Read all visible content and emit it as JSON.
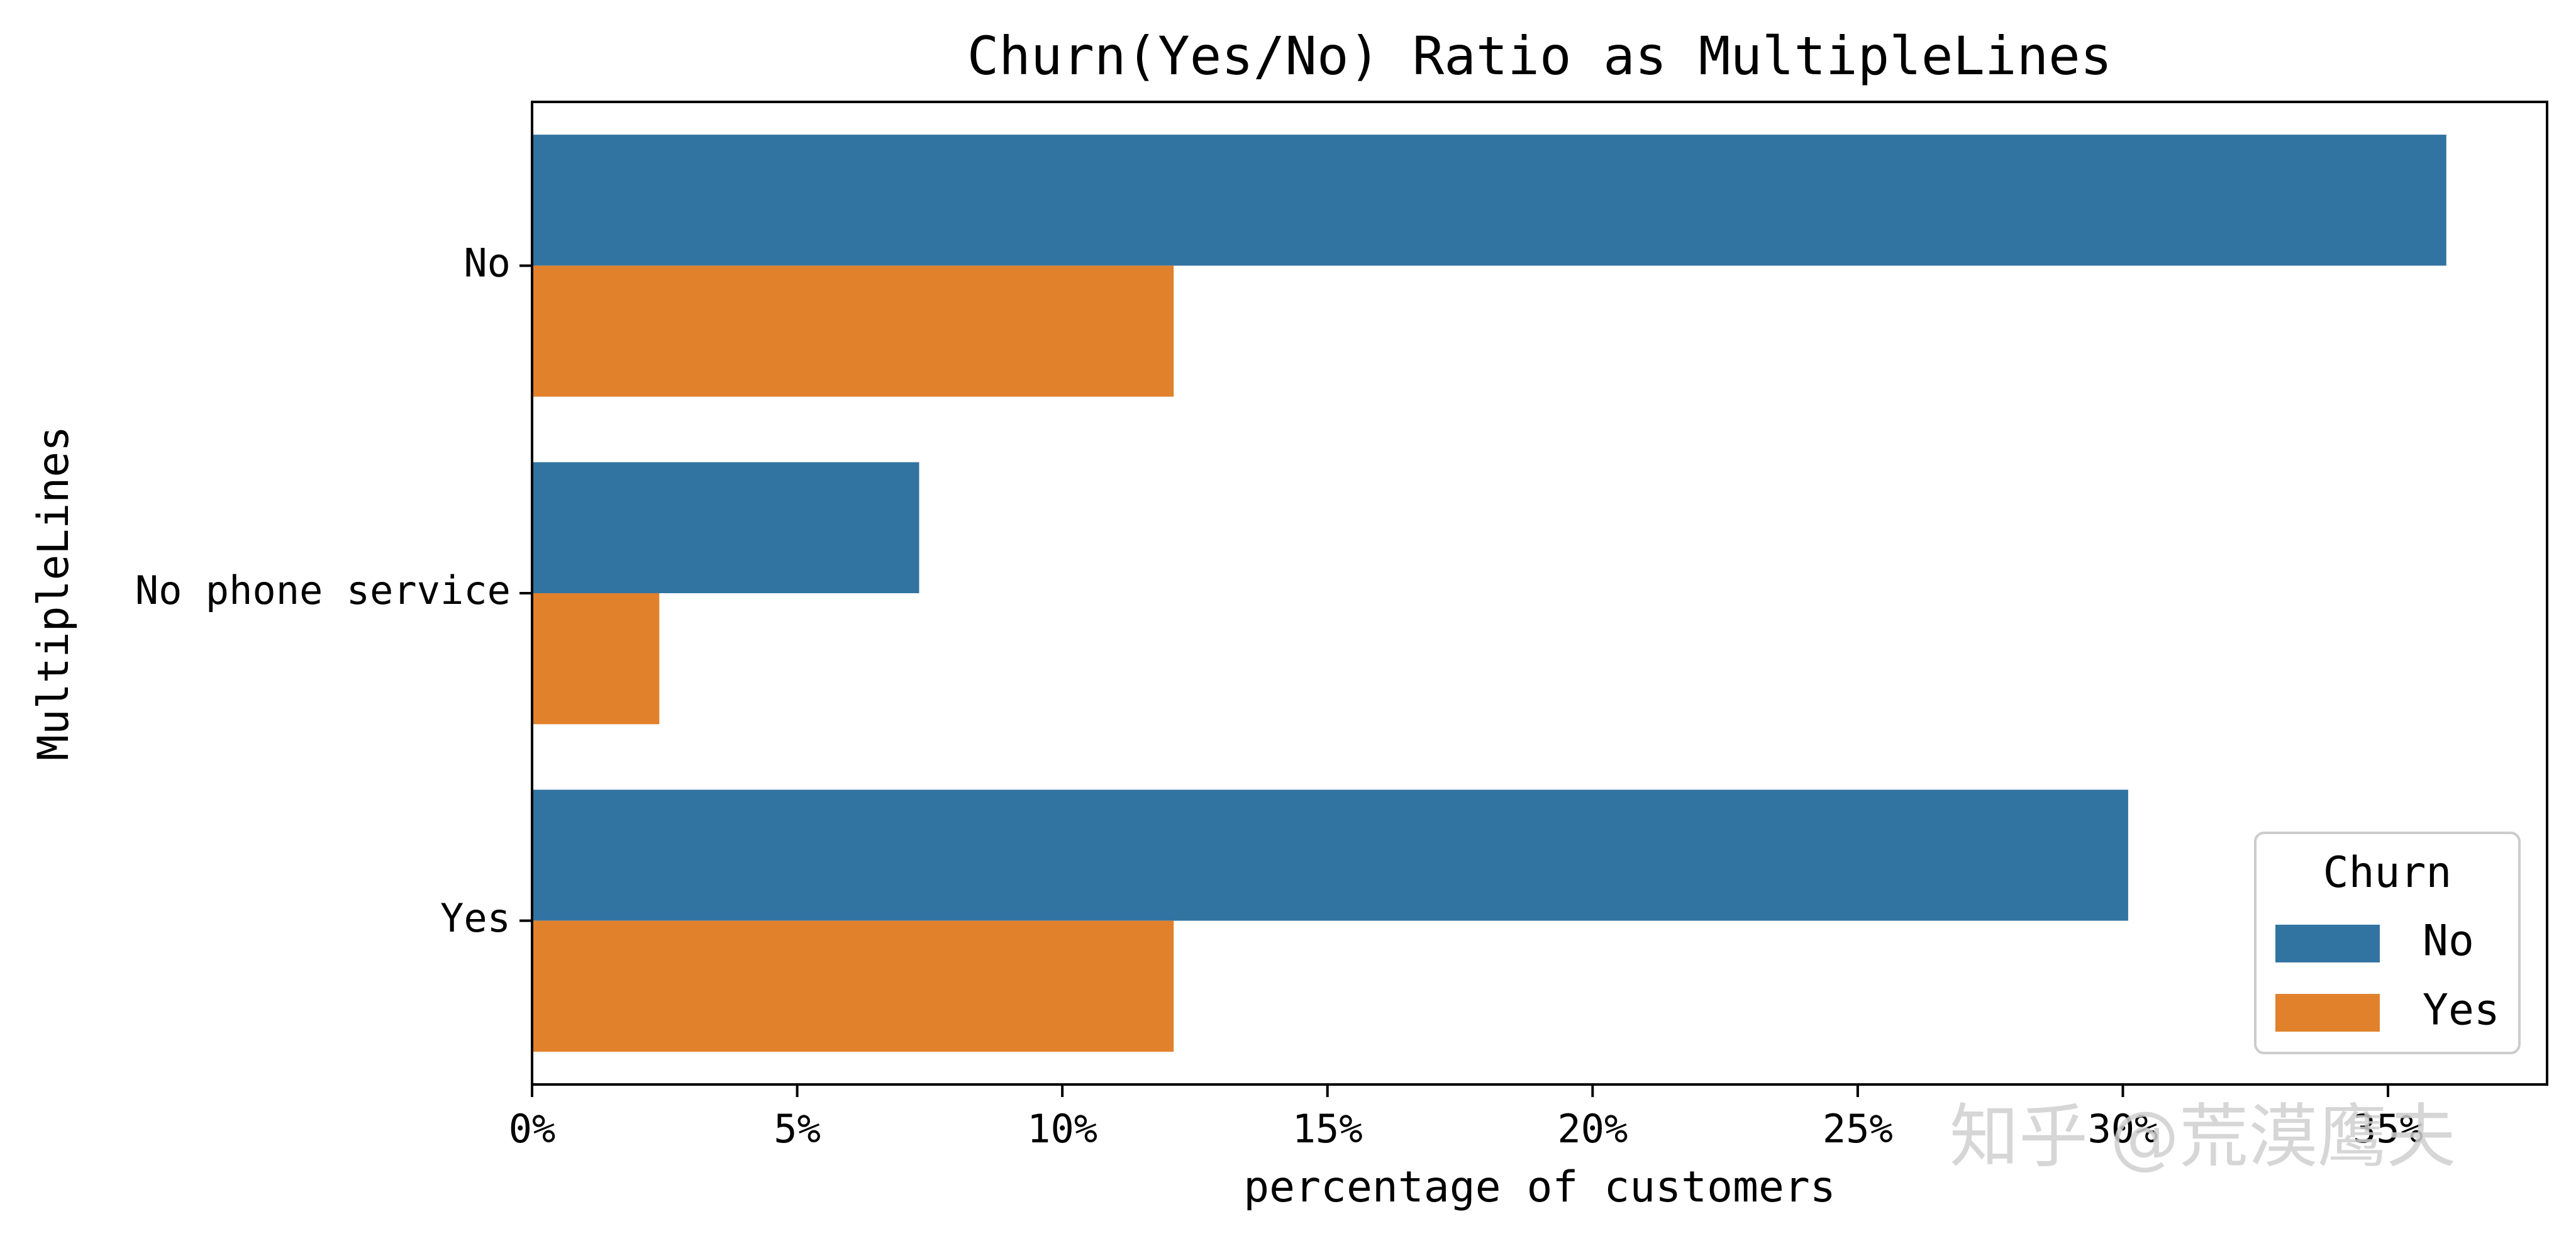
{
  "chart_data": {
    "type": "bar",
    "orientation": "horizontal",
    "title": "Churn(Yes/No) Ratio as MultipleLines",
    "xlabel": "percentage of customers",
    "ylabel": "MultipleLines",
    "categories": [
      "No",
      "No phone service",
      "Yes"
    ],
    "series": [
      {
        "name": "No",
        "color": "#3274a1",
        "values": [
          36.1,
          7.3,
          30.1
        ]
      },
      {
        "name": "Yes",
        "color": "#e1812c",
        "values": [
          12.1,
          2.4,
          12.1
        ]
      }
    ],
    "xlim": [
      0,
      38
    ],
    "xticks": [
      0,
      5,
      10,
      15,
      20,
      25,
      30,
      35
    ],
    "xtick_labels": [
      "0%",
      "5%",
      "10%",
      "15%",
      "20%",
      "25%",
      "30%",
      "35%"
    ],
    "legend": {
      "title": "Churn",
      "placement": "lower-right",
      "entries": [
        "No",
        "Yes"
      ]
    },
    "grid": false
  },
  "watermark": "知乎 @荒漠鹰夫"
}
